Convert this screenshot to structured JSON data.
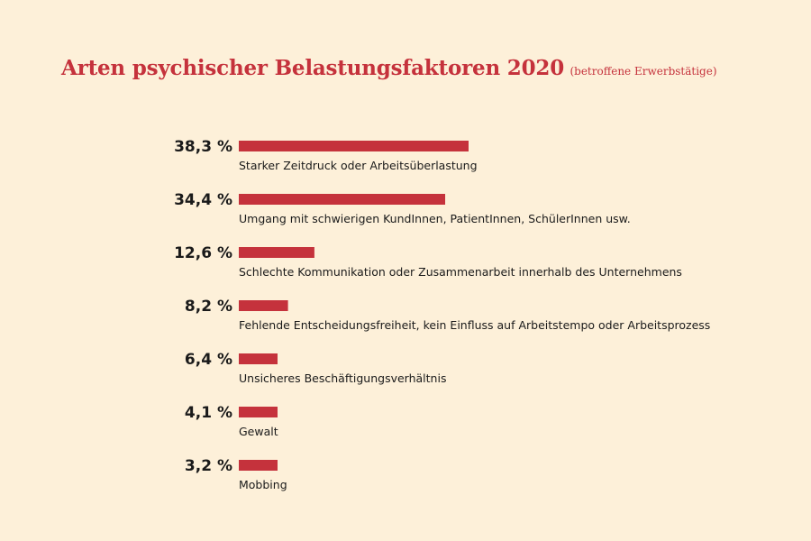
{
  "chart_data": {
    "type": "bar",
    "orientation": "horizontal",
    "title": "Arten psychischer Belastungsfaktoren 2020",
    "subtitle": "(betroffene Erwerbstätige)",
    "categories": [
      "Starker Zeitdruck oder Arbeitsüberlastung",
      "Umgang mit schwierigen KundInnen, PatientInnen, SchülerInnen usw.",
      "Schlechte Kommunikation oder Zusammenarbeit innerhalb des Unternehmens",
      "Fehlende Entscheidungsfreiheit, kein Einfluss auf Arbeitstempo oder Arbeitsprozess",
      "Unsicheres Beschäftigungsverhältnis",
      "Gewalt",
      "Mobbing"
    ],
    "values": [
      38.3,
      34.4,
      12.6,
      8.2,
      6.4,
      4.1,
      3.2
    ],
    "value_labels": [
      "38,3 %",
      "34,4 %",
      "12,6 %",
      "8,2 %",
      "6,4 %",
      "4,1 %",
      "3,2 %"
    ],
    "unit": "%",
    "bar_color": "#c5323c",
    "background_color": "#fdf0d9",
    "grid": false,
    "legend": "none"
  }
}
